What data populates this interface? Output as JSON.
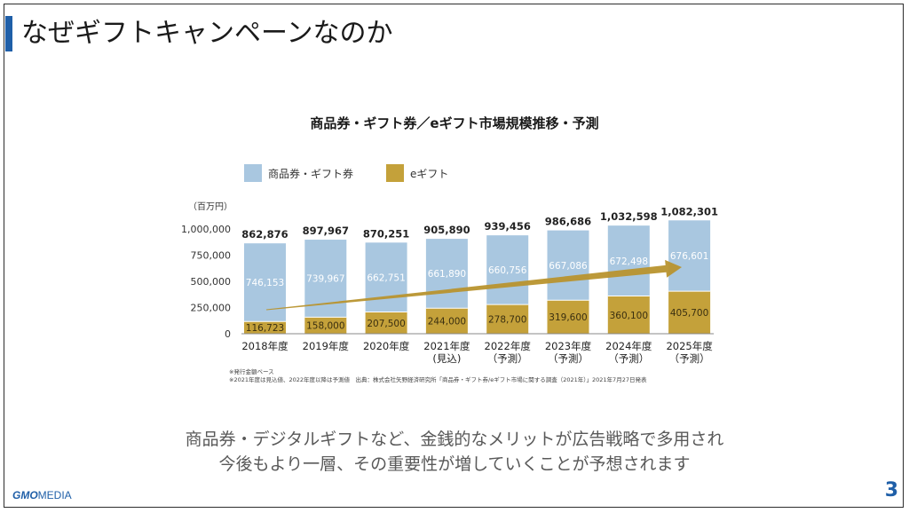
{
  "slide": {
    "title": "なぜギフトキャンペーンなのか",
    "message_line1": "商品券・デジタルギフトなど、金銭的なメリットが広告戦略で多用され",
    "message_line2": "今後もより一層、その重要性が増していくことが予想されます",
    "logo_gmo": "GMO",
    "logo_media": "MEDIA",
    "page_number": "3"
  },
  "notes": {
    "line1": "※発行金額ベース",
    "line2": "※2021年度は見込値、2022年度以降は予測値　出典：株式会社矢野経済研究所「商品券・ギフト券/eギフト市場に関する調査（2021年）」2021年7月27日発表"
  },
  "colors": {
    "accent": "#1f5fa8",
    "voucher": "#a9c7e0",
    "egift": "#c4a13a",
    "arrow": "#b8942e"
  },
  "chart_data": {
    "type": "bar",
    "stacked": true,
    "title": "商品券・ギフト券／eギフト市場規模推移・予測",
    "unit_label": "（百万円）",
    "legend_position": "top-left",
    "categories": [
      "2018年度",
      "2019年度",
      "2020年度",
      "2021年度\n(見込)",
      "2022年度\n（予測）",
      "2023年度\n（予測）",
      "2024年度\n（予測）",
      "2025年度\n（予測）"
    ],
    "series": [
      {
        "name": "eギフト",
        "values": [
          116723,
          158000,
          207500,
          244000,
          278700,
          319600,
          360100,
          405700
        ],
        "labels": [
          "116,723",
          "158,000",
          "207,500",
          "244,000",
          "278,700",
          "319,600",
          "360,100",
          "405,700"
        ]
      },
      {
        "name": "商品券・ギフト券",
        "values": [
          746153,
          739967,
          662751,
          661890,
          660756,
          667086,
          672498,
          676601
        ],
        "labels": [
          "746,153",
          "739,967",
          "662,751",
          "661,890",
          "660,756",
          "667,086",
          "672,498",
          "676,601"
        ]
      }
    ],
    "totals": [
      862876,
      897967,
      870251,
      905890,
      939456,
      986686,
      1032598,
      1082301
    ],
    "total_labels": [
      "862,876",
      "897,967",
      "870,251",
      "905,890",
      "939,456",
      "986,686",
      "1,032,598",
      "1,082,301"
    ],
    "y_ticks": [
      0,
      250000,
      500000,
      750000,
      1000000
    ],
    "y_tick_labels": [
      "0",
      "250,000",
      "500,000",
      "750,000",
      "1,000,000"
    ],
    "ylim": [
      0,
      1000000
    ],
    "grid": false,
    "trend_arrow": true
  }
}
